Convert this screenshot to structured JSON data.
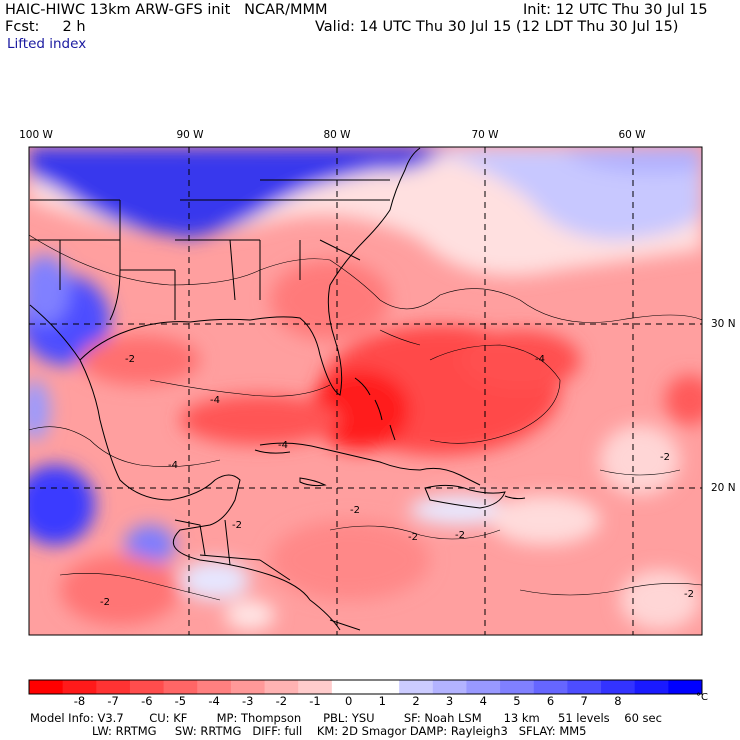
{
  "header": {
    "title": "HAIC-HIWC 13km ARW-GFS init   NCAR/MMM",
    "forecast": "Fcst:     2 h",
    "field": "Lifted index",
    "init": "Init: 12 UTC Thu 30 Jul 15",
    "valid": "Valid: 14 UTC Thu 30 Jul 15 (12 LDT Thu 30 Jul 15)"
  },
  "map": {
    "lon_labels": [
      "100 W",
      "90 W",
      "80 W",
      "70 W",
      "60 W"
    ],
    "lat_labels": [
      "30 N",
      "20 N"
    ],
    "contour_labels": [
      "-2",
      "-2",
      "-4",
      "-4",
      "-4",
      "-4",
      "-2",
      "-2",
      "-2",
      "-2",
      "-2",
      "-2"
    ]
  },
  "colorbar": {
    "labels": [
      "-8",
      "-7",
      "-6",
      "-5",
      "-4",
      "-3",
      "-2",
      "-1",
      "0",
      "1",
      "2",
      "3",
      "4",
      "5",
      "6",
      "7",
      "8"
    ],
    "unit": "°C",
    "colors": [
      "#ff0000",
      "#ff1a1a",
      "#ff3333",
      "#ff4d4d",
      "#ff6666",
      "#ff8080",
      "#ff9999",
      "#ffb3b3",
      "#ffcccc",
      "#ffffff",
      "#ffffff",
      "#ccccff",
      "#b3b3ff",
      "#9999ff",
      "#8080ff",
      "#6666ff",
      "#4d4dff",
      "#3333ff",
      "#1a1aff",
      "#0000ff"
    ]
  },
  "footer": {
    "line1": "Model Info: V3.7       CU: KF        MP: Thompson      PBL: YSU        SF: Noah LSM      13 km     51 levels    60 sec",
    "line2": "LW: RRTMG     SW: RRTMG   DIFF: full    KM: 2D Smagor DAMP: Rayleigh3   SFLAY: MM5"
  }
}
